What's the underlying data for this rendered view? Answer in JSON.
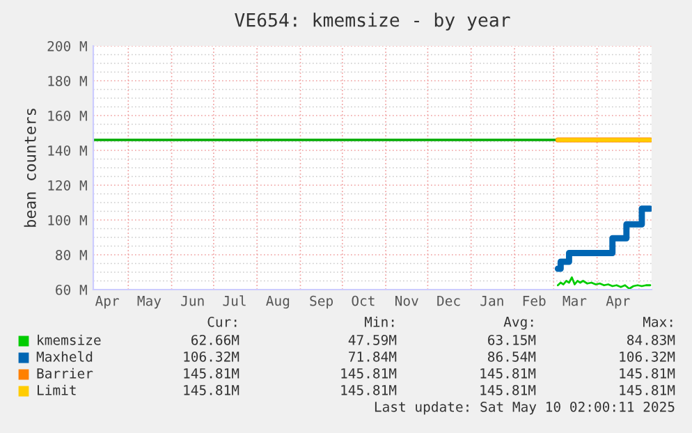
{
  "chart_data": {
    "type": "line",
    "title": "VE654: kmemsize - by year",
    "ylabel": "bean counters",
    "xlim": [
      "2024-04-06",
      "2025-05-10"
    ],
    "xticks": [
      {
        "value": "2024-04-16",
        "label": "Apr"
      },
      {
        "value": "2024-05-01",
        "label": null
      },
      {
        "value": "2024-05-16",
        "label": "May"
      },
      {
        "value": "2024-06-01",
        "label": null
      },
      {
        "value": "2024-06-16",
        "label": "Jun"
      },
      {
        "value": "2024-07-01",
        "label": null
      },
      {
        "value": "2024-07-16",
        "label": "Jul"
      },
      {
        "value": "2024-08-01",
        "label": null
      },
      {
        "value": "2024-08-16",
        "label": "Aug"
      },
      {
        "value": "2024-09-01",
        "label": null
      },
      {
        "value": "2024-09-16",
        "label": "Sep"
      },
      {
        "value": "2024-10-01",
        "label": null
      },
      {
        "value": "2024-10-16",
        "label": "Oct"
      },
      {
        "value": "2024-11-01",
        "label": null
      },
      {
        "value": "2024-11-16",
        "label": "Nov"
      },
      {
        "value": "2024-12-01",
        "label": null
      },
      {
        "value": "2024-12-16",
        "label": "Dec"
      },
      {
        "value": "2025-01-01",
        "label": null
      },
      {
        "value": "2025-01-16",
        "label": "Jan"
      },
      {
        "value": "2025-02-01",
        "label": null
      },
      {
        "value": "2025-02-15",
        "label": "Feb"
      },
      {
        "value": "2025-03-01",
        "label": null
      },
      {
        "value": "2025-03-16",
        "label": "Mar"
      },
      {
        "value": "2025-04-01",
        "label": null
      },
      {
        "value": "2025-04-16",
        "label": "Apr"
      },
      {
        "value": "2025-05-01",
        "label": null
      }
    ],
    "ylim": [
      60,
      200
    ],
    "yticks": [
      {
        "value": 60,
        "label": "60 M"
      },
      {
        "value": 65,
        "label": null
      },
      {
        "value": 70,
        "label": null
      },
      {
        "value": 75,
        "label": null
      },
      {
        "value": 80,
        "label": "80 M"
      },
      {
        "value": 85,
        "label": null
      },
      {
        "value": 90,
        "label": null
      },
      {
        "value": 95,
        "label": null
      },
      {
        "value": 100,
        "label": "100 M"
      },
      {
        "value": 105,
        "label": null
      },
      {
        "value": 110,
        "label": null
      },
      {
        "value": 115,
        "label": null
      },
      {
        "value": 120,
        "label": "120 M"
      },
      {
        "value": 125,
        "label": null
      },
      {
        "value": 130,
        "label": null
      },
      {
        "value": 135,
        "label": null
      },
      {
        "value": 140,
        "label": "140 M"
      },
      {
        "value": 145,
        "label": null
      },
      {
        "value": 150,
        "label": null
      },
      {
        "value": 155,
        "label": null
      },
      {
        "value": 160,
        "label": "160 M"
      },
      {
        "value": 165,
        "label": null
      },
      {
        "value": 170,
        "label": null
      },
      {
        "value": 175,
        "label": null
      },
      {
        "value": 180,
        "label": "180 M"
      },
      {
        "value": 185,
        "label": null
      },
      {
        "value": 190,
        "label": null
      },
      {
        "value": 195,
        "label": null
      },
      {
        "value": 200,
        "label": "200 M"
      }
    ],
    "grid": true,
    "legend": "bottom",
    "ref_lines": [
      {
        "axis": "y",
        "value": 146,
        "color": "#00aa00"
      }
    ],
    "series": [
      {
        "name": "kmemsize",
        "color": "#00cc00",
        "x": [
          "2025-03-04",
          "2025-03-06",
          "2025-03-08",
          "2025-03-10",
          "2025-03-12",
          "2025-03-14",
          "2025-03-16",
          "2025-03-18",
          "2025-03-20",
          "2025-03-22",
          "2025-03-25",
          "2025-03-28",
          "2025-03-31",
          "2025-04-03",
          "2025-04-06",
          "2025-04-09",
          "2025-04-12",
          "2025-04-15",
          "2025-04-18",
          "2025-04-21",
          "2025-04-24",
          "2025-04-27",
          "2025-04-30",
          "2025-05-03",
          "2025-05-06",
          "2025-05-09"
        ],
        "values": [
          62.5,
          64,
          63,
          65,
          64,
          67,
          63,
          65,
          64,
          65,
          63.5,
          64,
          63,
          63.5,
          62.5,
          63,
          62,
          62.5,
          61.5,
          62.5,
          60.5,
          62,
          62.5,
          62,
          62.5,
          62.5
        ]
      },
      {
        "name": "Maxheld",
        "color": "#0066b3",
        "type": "step",
        "x": [
          "2025-03-04",
          "2025-03-06",
          "2025-03-12",
          "2025-04-12",
          "2025-04-22",
          "2025-05-03",
          "2025-05-09"
        ],
        "values": [
          72,
          76,
          81,
          89.5,
          97.5,
          106.5,
          106.5
        ]
      },
      {
        "name": "Barrier",
        "color": "#ff8000",
        "x": [
          "2025-03-04",
          "2025-05-09"
        ],
        "values": [
          146,
          146
        ]
      },
      {
        "name": "Limit",
        "color": "#ffcc00",
        "x": [
          "2025-03-04",
          "2025-05-09"
        ],
        "values": [
          146,
          146
        ]
      }
    ],
    "annotations": [
      "Cur:",
      "Min:",
      "Avg:",
      "Max:",
      "62.66M",
      "47.59M",
      "63.15M",
      "84.83M",
      "106.32M",
      "71.84M",
      "86.54M",
      "106.32M",
      "145.81M",
      "145.81M",
      "145.81M",
      "145.81M",
      "145.81M",
      "145.81M",
      "145.81M",
      "145.81M",
      "Last update: Sat May 10 02:00:11 2025"
    ]
  }
}
